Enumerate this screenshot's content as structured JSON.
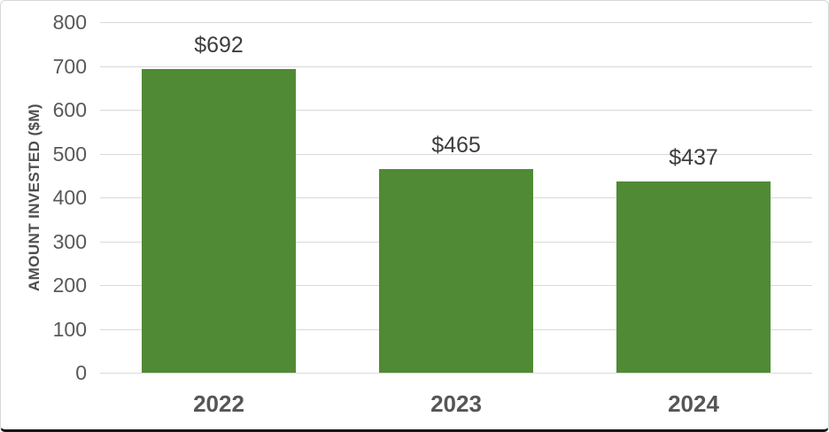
{
  "chart_data": {
    "type": "bar",
    "title": "",
    "categories": [
      "2022",
      "2023",
      "2024"
    ],
    "values": [
      692,
      465,
      437
    ],
    "data_labels": [
      "$692",
      "$465",
      "$437"
    ],
    "xlabel": "",
    "ylabel": "AMOUNT INVESTED ($M)",
    "ylim": [
      0,
      800
    ],
    "yticks": [
      0,
      100,
      200,
      300,
      400,
      500,
      600,
      700,
      800
    ],
    "grid": true,
    "legend": "none",
    "bar_color": "#508a34"
  },
  "colors": {
    "bar": "#508a34",
    "gridline": "#d9d9d9",
    "tick_label": "#595959",
    "data_label": "#3d3d3d",
    "category_label": "#565656",
    "axis_title": "#4d4d4d",
    "background": "#ffffff",
    "frame_border": "#d8d8d8",
    "frame_bottom_border": "#161616"
  }
}
